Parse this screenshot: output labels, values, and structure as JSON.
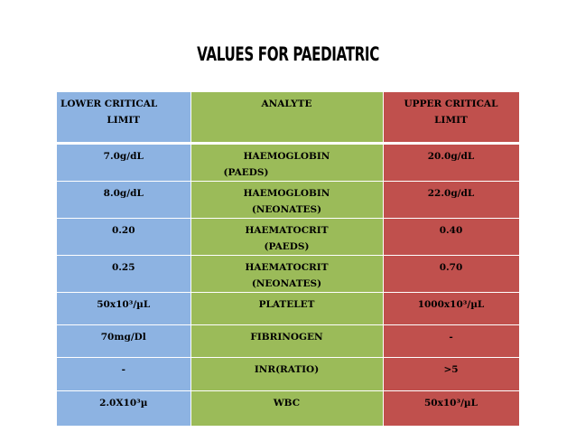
{
  "title": "VALUES FOR PAEDIATRIC",
  "colors": {
    "lower": "#8db3e2",
    "analyte": "#9bbb59",
    "upper": "#c0504d"
  },
  "table": {
    "headers": {
      "lower": [
        "LOWER CRITICAL",
        "LIMIT"
      ],
      "analyte": [
        "ANALYTE"
      ],
      "upper": [
        "UPPER CRITICAL",
        "LIMIT"
      ]
    },
    "rows": [
      {
        "lower": "7.0g/dL",
        "analyte": [
          "HAEMOGLOBIN",
          "(PAEDS)"
        ],
        "upper": "20.0g/dL"
      },
      {
        "lower": "8.0g/dL",
        "analyte": [
          "HAEMOGLOBIN",
          "(NEONATES)"
        ],
        "upper": "22.0g/dL"
      },
      {
        "lower": "0.20",
        "analyte": [
          "HAEMATOCRIT",
          "(PAEDS)"
        ],
        "upper": "0.40"
      },
      {
        "lower": "0.25",
        "analyte": [
          "HAEMATOCRIT",
          "(NEONATES)"
        ],
        "upper": "0.70"
      },
      {
        "lower": "50x10³/µL",
        "analyte": [
          "PLATELET"
        ],
        "upper": "1000x10³/µL"
      },
      {
        "lower": "70mg/Dl",
        "analyte": [
          "FIBRINOGEN"
        ],
        "upper": "-"
      },
      {
        "lower": "-",
        "analyte": [
          "INR(RATIO)"
        ],
        "upper": ">5"
      },
      {
        "lower": "2.0X10³µ",
        "analyte": [
          "WBC"
        ],
        "upper": "50x10³/µL"
      }
    ]
  }
}
